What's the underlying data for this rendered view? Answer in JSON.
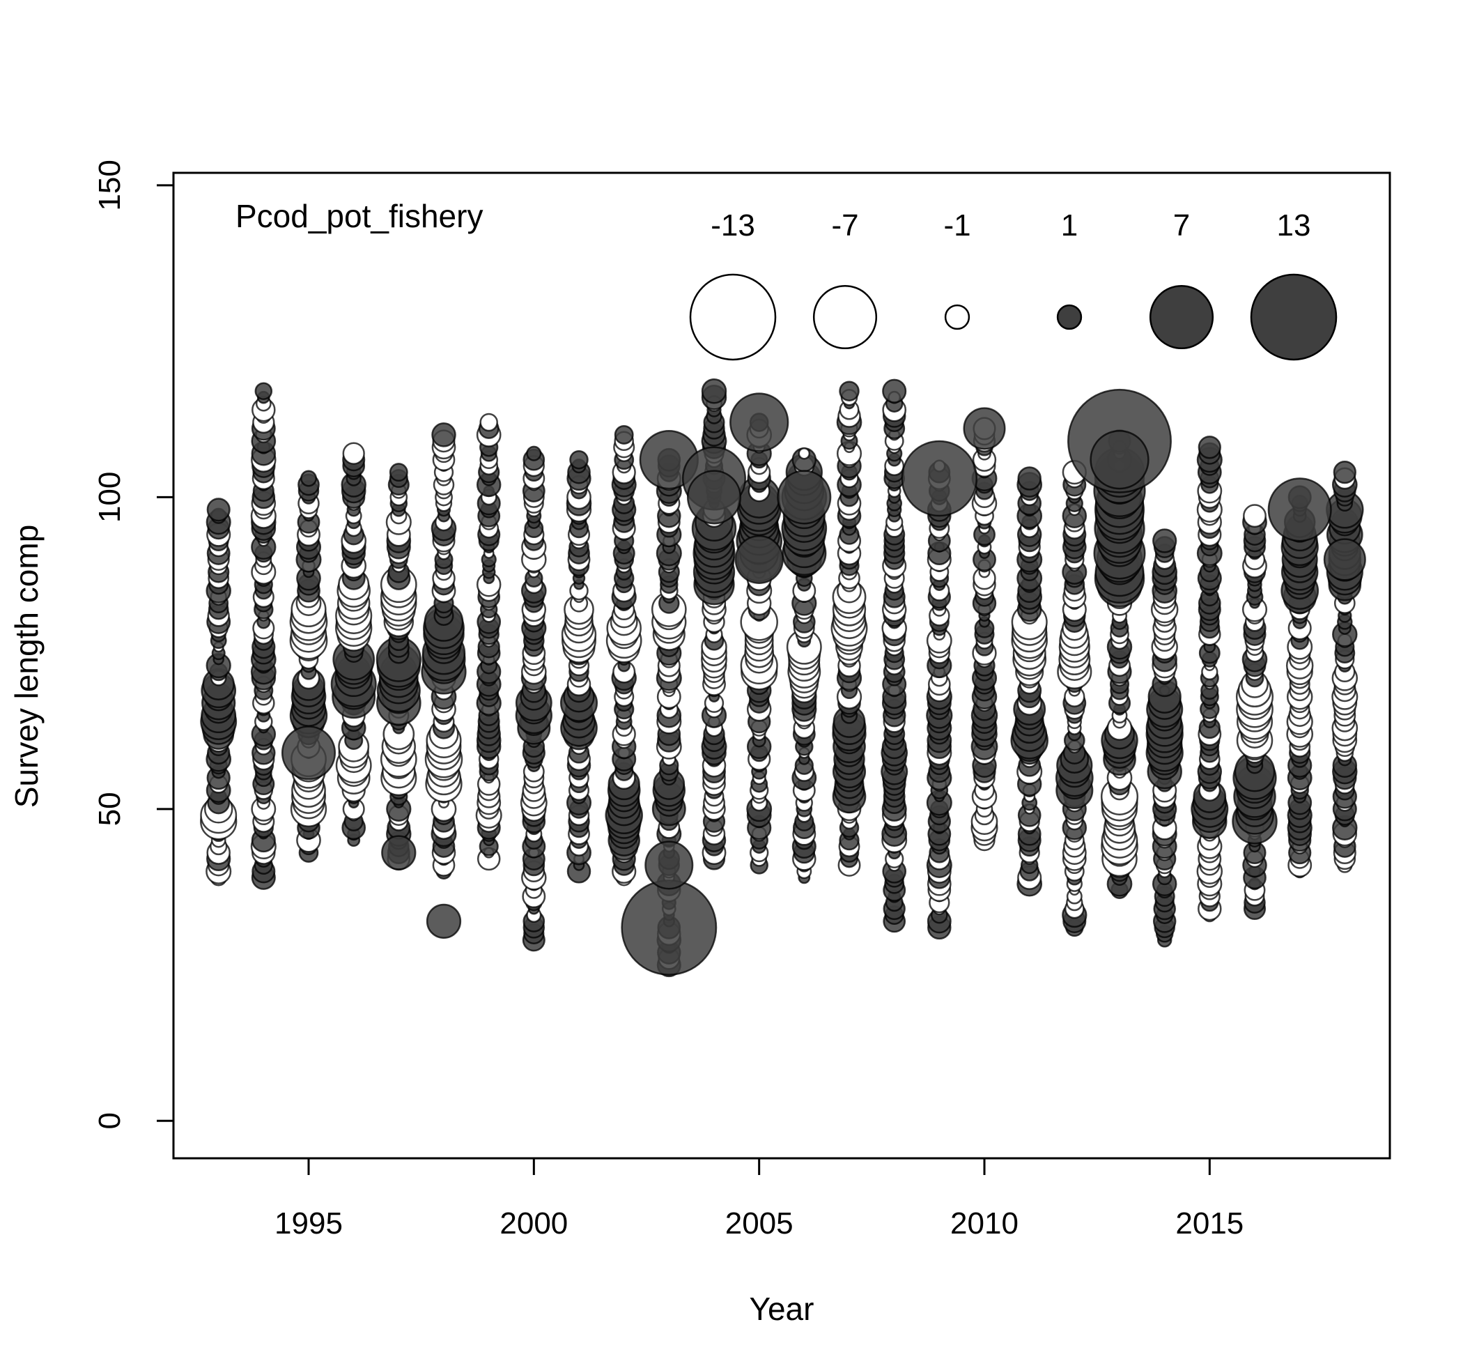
{
  "chart_data": {
    "type": "scatter",
    "title": "Pcod_pot_fishery",
    "xlabel": "Year",
    "ylabel": "Survey length comp",
    "xlim": [
      1992,
      2019
    ],
    "ylim": [
      -6,
      152
    ],
    "x_ticks": [
      1995,
      2000,
      2005,
      2010,
      2015
    ],
    "y_ticks": [
      0,
      50,
      100,
      150
    ],
    "grid": false,
    "legend": {
      "placement": "top-right",
      "entries": [
        {
          "label": "-13",
          "value": -13
        },
        {
          "label": "-7",
          "value": -7
        },
        {
          "label": "-1",
          "value": -1
        },
        {
          "label": "1",
          "value": 1
        },
        {
          "label": "7",
          "value": 7
        },
        {
          "label": "13",
          "value": 13
        }
      ]
    },
    "colors": {
      "positive_fill": "#3f3f3f",
      "negative_fill": "#ffffff",
      "stroke": "#000000"
    },
    "notable_points": [
      {
        "x": 1995,
        "y": 59,
        "value": 5
      },
      {
        "x": 1997,
        "y": 43,
        "value": 2
      },
      {
        "x": 1998,
        "y": 32,
        "value": 2
      },
      {
        "x": 2003,
        "y": 31,
        "value": 16
      },
      {
        "x": 2003,
        "y": 106,
        "value": 6
      },
      {
        "x": 2003,
        "y": 41,
        "value": 4
      },
      {
        "x": 2004,
        "y": 103,
        "value": 7
      },
      {
        "x": 2004,
        "y": 100,
        "value": 5
      },
      {
        "x": 2005,
        "y": 112,
        "value": 6
      },
      {
        "x": 2005,
        "y": 90,
        "value": 4
      },
      {
        "x": 2006,
        "y": 100,
        "value": 5
      },
      {
        "x": 2009,
        "y": 103,
        "value": 10
      },
      {
        "x": 2010,
        "y": 111,
        "value": 3
      },
      {
        "x": 2013,
        "y": 109,
        "value": 19
      },
      {
        "x": 2013,
        "y": 106,
        "value": 6
      },
      {
        "x": 2017,
        "y": 98,
        "value": 7
      },
      {
        "x": 2018,
        "y": 90,
        "value": 3
      }
    ],
    "columns": [
      {
        "x": 1993,
        "ymin": 39,
        "ymax": 98,
        "dense": [
          [
            62,
            70,
            2
          ],
          [
            48,
            50,
            -2
          ]
        ]
      },
      {
        "x": 1994,
        "ymin": 39,
        "ymax": 117,
        "dense": []
      },
      {
        "x": 1995,
        "ymin": 43,
        "ymax": 103,
        "dense": [
          [
            64,
            70,
            2
          ],
          [
            50,
            58,
            -2
          ],
          [
            76,
            82,
            -2
          ]
        ]
      },
      {
        "x": 1996,
        "ymin": 45,
        "ymax": 107,
        "dense": [
          [
            68,
            74,
            3
          ],
          [
            55,
            60,
            -2
          ],
          [
            78,
            86,
            -2
          ]
        ]
      },
      {
        "x": 1997,
        "ymin": 42,
        "ymax": 104,
        "dense": [
          [
            67,
            74,
            3
          ],
          [
            55,
            62,
            -2
          ],
          [
            80,
            86,
            -2
          ]
        ]
      },
      {
        "x": 1998,
        "ymin": 40,
        "ymax": 110,
        "dense": [
          [
            72,
            80,
            3
          ],
          [
            54,
            62,
            -2
          ]
        ]
      },
      {
        "x": 1999,
        "ymin": 42,
        "ymax": 112,
        "dense": [
          [
            60,
            64,
            1
          ],
          [
            48,
            54,
            -1
          ]
        ]
      },
      {
        "x": 2000,
        "ymin": 29,
        "ymax": 107,
        "dense": [
          [
            63,
            68,
            2
          ],
          [
            50,
            56,
            -1
          ]
        ]
      },
      {
        "x": 2001,
        "ymin": 40,
        "ymax": 106,
        "dense": [
          [
            62,
            68,
            2
          ],
          [
            76,
            82,
            -2
          ]
        ]
      },
      {
        "x": 2002,
        "ymin": 39,
        "ymax": 110,
        "dense": [
          [
            44,
            54,
            2
          ],
          [
            76,
            80,
            -2
          ]
        ]
      },
      {
        "x": 2003,
        "ymin": 25,
        "ymax": 106,
        "dense": [
          [
            50,
            54,
            2
          ],
          [
            78,
            82,
            -2
          ]
        ]
      },
      {
        "x": 2004,
        "ymin": 42,
        "ymax": 117,
        "dense": [
          [
            86,
            96,
            3
          ],
          [
            70,
            76,
            -1
          ]
        ]
      },
      {
        "x": 2005,
        "ymin": 41,
        "ymax": 112,
        "dense": [
          [
            90,
            100,
            3
          ],
          [
            72,
            80,
            -2
          ]
        ]
      },
      {
        "x": 2006,
        "ymin": 39,
        "ymax": 107,
        "dense": [
          [
            90,
            104,
            3
          ],
          [
            70,
            76,
            -2
          ]
        ]
      },
      {
        "x": 2007,
        "ymin": 41,
        "ymax": 117,
        "dense": [
          [
            52,
            64,
            2
          ],
          [
            76,
            84,
            -2
          ]
        ]
      },
      {
        "x": 2008,
        "ymin": 32,
        "ymax": 117,
        "dense": [
          [
            50,
            62,
            1
          ]
        ]
      },
      {
        "x": 2009,
        "ymin": 31,
        "ymax": 105,
        "dense": [
          [
            60,
            68,
            1
          ]
        ]
      },
      {
        "x": 2010,
        "ymin": 45,
        "ymax": 111,
        "dense": [
          [
            60,
            66,
            1
          ],
          [
            45,
            48,
            -1
          ]
        ]
      },
      {
        "x": 2011,
        "ymin": 38,
        "ymax": 103,
        "dense": [
          [
            60,
            66,
            2
          ],
          [
            72,
            80,
            -2
          ]
        ]
      },
      {
        "x": 2012,
        "ymin": 31,
        "ymax": 104,
        "dense": [
          [
            53,
            58,
            2
          ],
          [
            72,
            78,
            -2
          ]
        ]
      },
      {
        "x": 2013,
        "ymin": 37,
        "ymax": 109,
        "dense": [
          [
            86,
            104,
            4
          ],
          [
            42,
            52,
            -2
          ],
          [
            58,
            62,
            2
          ]
        ]
      },
      {
        "x": 2014,
        "ymin": 29,
        "ymax": 93,
        "dense": [
          [
            56,
            68,
            2
          ],
          [
            76,
            82,
            -1
          ]
        ]
      },
      {
        "x": 2015,
        "ymin": 33,
        "ymax": 108,
        "dense": [
          [
            48,
            52,
            2
          ],
          [
            38,
            44,
            -1
          ]
        ]
      },
      {
        "x": 2016,
        "ymin": 34,
        "ymax": 97,
        "dense": [
          [
            48,
            56,
            3
          ],
          [
            60,
            70,
            -2
          ]
        ]
      },
      {
        "x": 2017,
        "ymin": 40,
        "ymax": 100,
        "dense": [
          [
            84,
            96,
            2
          ],
          [
            60,
            76,
            -1
          ]
        ]
      },
      {
        "x": 2018,
        "ymin": 41,
        "ymax": 104,
        "dense": [
          [
            86,
            98,
            2
          ],
          [
            60,
            72,
            -1
          ]
        ]
      }
    ]
  }
}
